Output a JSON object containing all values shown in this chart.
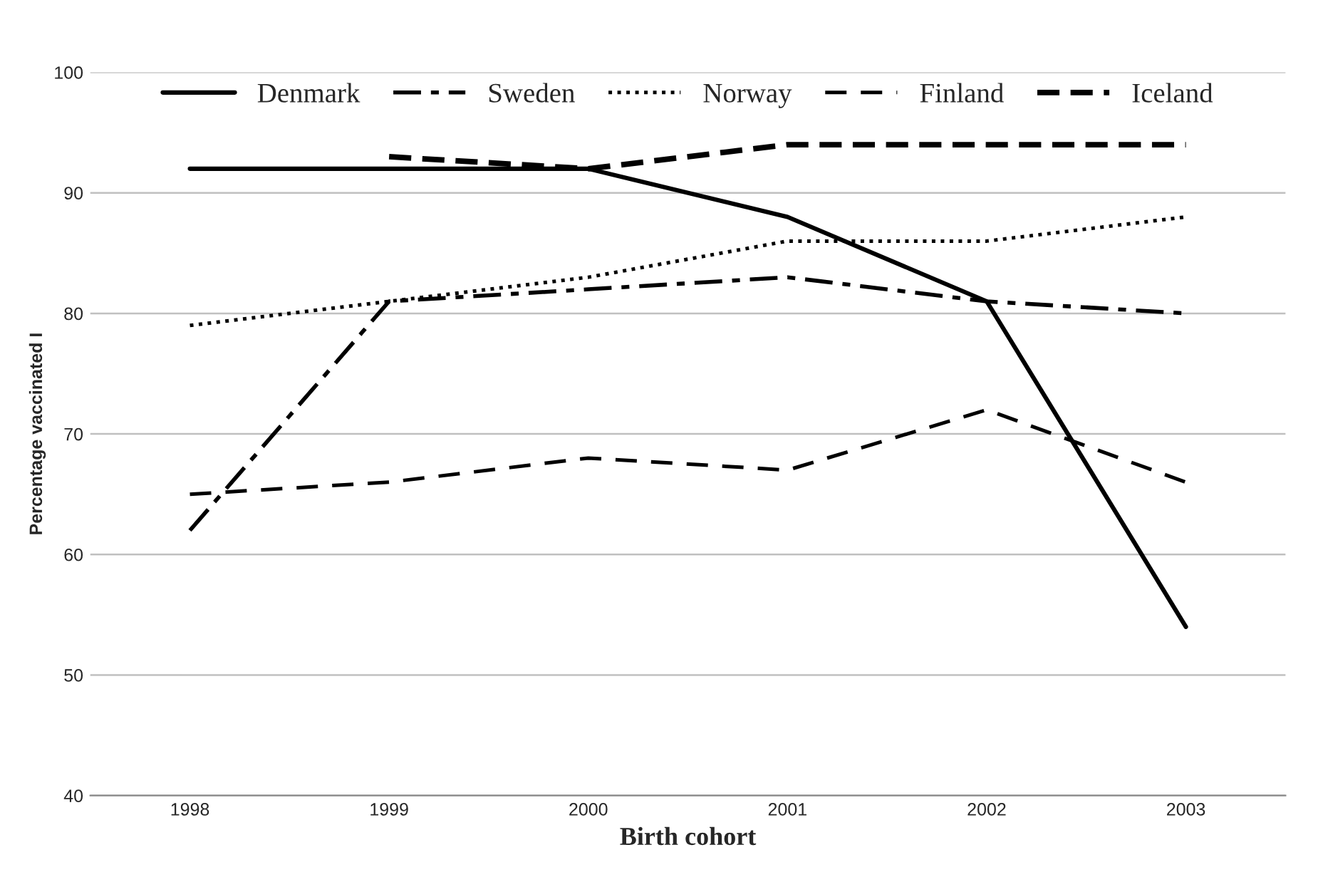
{
  "chart_data": {
    "type": "line",
    "xlabel": "Birth cohort",
    "ylabel": "Percentage vaccinated I",
    "categories": [
      "1998",
      "1999",
      "2000",
      "2001",
      "2002",
      "2003"
    ],
    "series": [
      {
        "name": "Denmark",
        "color": "#000000",
        "line_style": "solid",
        "values": [
          92,
          92,
          92,
          88,
          81,
          54
        ]
      },
      {
        "name": "Sweden",
        "color": "#000000",
        "line_style": "dashdot",
        "values": [
          62,
          81,
          82,
          83,
          81,
          80
        ]
      },
      {
        "name": "Norway",
        "color": "#000000",
        "line_style": "dotted",
        "values": [
          79,
          81,
          83,
          86,
          86,
          88
        ]
      },
      {
        "name": "Finland",
        "color": "#000000",
        "line_style": "dashed",
        "values": [
          65,
          66,
          68,
          67,
          72,
          66
        ]
      },
      {
        "name": "Iceland",
        "color": "#000000",
        "line_style": "heavydashed",
        "values": [
          null,
          93,
          92,
          94,
          94,
          94
        ]
      }
    ],
    "ylim": [
      40,
      100
    ],
    "yticks": [
      40,
      50,
      60,
      70,
      80,
      90,
      100
    ],
    "grid": "y",
    "legend": "top",
    "marker": "none"
  }
}
